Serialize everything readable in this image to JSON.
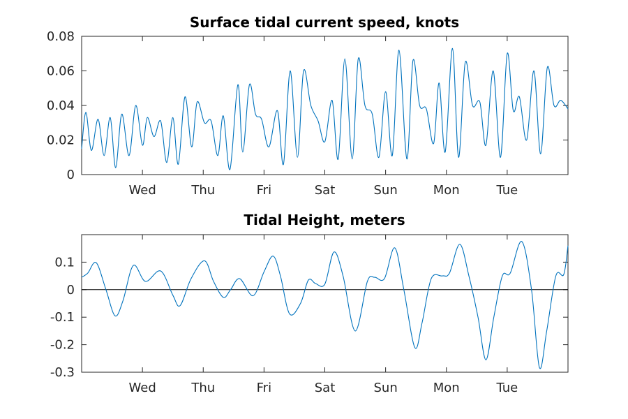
{
  "chart_data": [
    {
      "type": "line",
      "title": "Surface tidal current speed, knots",
      "xlabel": "",
      "ylabel": "",
      "x_unit": "days",
      "xlim": [
        0,
        8
      ],
      "ylim": [
        0,
        0.08
      ],
      "x_ticks": [
        {
          "value": 1,
          "label": "Wed"
        },
        {
          "value": 2,
          "label": "Thu"
        },
        {
          "value": 3,
          "label": "Fri"
        },
        {
          "value": 4,
          "label": "Sat"
        },
        {
          "value": 5,
          "label": "Sun"
        },
        {
          "value": 6,
          "label": "Mon"
        },
        {
          "value": 7,
          "label": "Tue"
        }
      ],
      "y_ticks": [
        {
          "value": 0,
          "label": "0"
        },
        {
          "value": 0.02,
          "label": "0.02"
        },
        {
          "value": 0.04,
          "label": "0.04"
        },
        {
          "value": 0.06,
          "label": "0.06"
        },
        {
          "value": 0.08,
          "label": "0.08"
        }
      ],
      "grid": false,
      "series": [
        {
          "color": "#0072BD",
          "x": [
            0.0,
            0.07,
            0.16,
            0.27,
            0.37,
            0.47,
            0.56,
            0.66,
            0.78,
            0.89,
            1.0,
            1.08,
            1.19,
            1.3,
            1.4,
            1.5,
            1.59,
            1.7,
            1.81,
            1.9,
            2.02,
            2.13,
            2.24,
            2.33,
            2.44,
            2.57,
            2.65,
            2.76,
            2.86,
            2.96,
            3.08,
            3.22,
            3.32,
            3.43,
            3.55,
            3.65,
            3.77,
            3.89,
            4.0,
            4.12,
            4.22,
            4.33,
            4.45,
            4.55,
            4.66,
            4.78,
            4.89,
            5.0,
            5.11,
            5.22,
            5.35,
            5.45,
            5.56,
            5.67,
            5.79,
            5.88,
            5.98,
            6.1,
            6.2,
            6.31,
            6.43,
            6.55,
            6.65,
            6.77,
            6.89,
            7.0,
            7.1,
            7.2,
            7.32,
            7.44,
            7.55,
            7.66,
            7.77,
            7.88,
            8.0
          ],
          "y": [
            0.015,
            0.036,
            0.014,
            0.032,
            0.011,
            0.033,
            0.004,
            0.035,
            0.011,
            0.04,
            0.017,
            0.033,
            0.022,
            0.031,
            0.007,
            0.033,
            0.006,
            0.045,
            0.016,
            0.042,
            0.03,
            0.031,
            0.011,
            0.034,
            0.003,
            0.052,
            0.013,
            0.052,
            0.035,
            0.032,
            0.016,
            0.037,
            0.006,
            0.06,
            0.01,
            0.06,
            0.04,
            0.031,
            0.019,
            0.043,
            0.009,
            0.067,
            0.009,
            0.067,
            0.04,
            0.035,
            0.01,
            0.048,
            0.011,
            0.072,
            0.009,
            0.066,
            0.04,
            0.038,
            0.018,
            0.053,
            0.013,
            0.073,
            0.01,
            0.065,
            0.04,
            0.042,
            0.017,
            0.06,
            0.01,
            0.07,
            0.037,
            0.045,
            0.02,
            0.06,
            0.012,
            0.062,
            0.04,
            0.043,
            0.038
          ]
        }
      ]
    },
    {
      "type": "line",
      "title": "Tidal Height, meters",
      "xlabel": "",
      "ylabel": "",
      "x_unit": "days",
      "xlim": [
        0,
        8
      ],
      "ylim": [
        -0.3,
        0.2
      ],
      "zero_line": true,
      "x_ticks": [
        {
          "value": 1,
          "label": "Wed"
        },
        {
          "value": 2,
          "label": "Thu"
        },
        {
          "value": 3,
          "label": "Fri"
        },
        {
          "value": 4,
          "label": "Sat"
        },
        {
          "value": 5,
          "label": "Sun"
        },
        {
          "value": 6,
          "label": "Mon"
        },
        {
          "value": 7,
          "label": "Tue"
        }
      ],
      "y_ticks": [
        {
          "value": 0.1,
          "label": "0.1"
        },
        {
          "value": 0,
          "label": "0"
        },
        {
          "value": -0.1,
          "label": "-0.1"
        },
        {
          "value": -0.2,
          "label": "-0.2"
        },
        {
          "value": -0.3,
          "label": "-0.3"
        }
      ],
      "grid": false,
      "series": [
        {
          "color": "#0072BD",
          "x": [
            0.0,
            0.1,
            0.24,
            0.4,
            0.55,
            0.68,
            0.85,
            1.05,
            1.3,
            1.5,
            1.62,
            1.8,
            2.02,
            2.17,
            2.33,
            2.45,
            2.6,
            2.82,
            3.0,
            3.15,
            3.27,
            3.42,
            3.6,
            3.73,
            3.85,
            4.0,
            4.15,
            4.3,
            4.5,
            4.7,
            4.82,
            4.98,
            5.15,
            5.3,
            5.48,
            5.6,
            5.75,
            5.93,
            6.05,
            6.22,
            6.37,
            6.52,
            6.65,
            6.78,
            6.92,
            7.05,
            7.24,
            7.4,
            7.53,
            7.65,
            7.8,
            7.93,
            8.0
          ],
          "y": [
            0.045,
            0.06,
            0.098,
            0.0,
            -0.095,
            -0.04,
            0.088,
            0.03,
            0.068,
            -0.02,
            -0.058,
            0.04,
            0.105,
            0.03,
            -0.028,
            0.0,
            0.04,
            -0.022,
            0.065,
            0.122,
            0.05,
            -0.088,
            -0.05,
            0.035,
            0.022,
            0.02,
            0.137,
            0.05,
            -0.15,
            0.03,
            0.045,
            0.04,
            0.152,
            0.0,
            -0.21,
            -0.12,
            0.04,
            0.05,
            0.06,
            0.165,
            0.05,
            -0.1,
            -0.255,
            -0.1,
            0.05,
            0.06,
            0.175,
            0.0,
            -0.283,
            -0.15,
            0.05,
            0.055,
            0.16
          ]
        }
      ]
    }
  ]
}
